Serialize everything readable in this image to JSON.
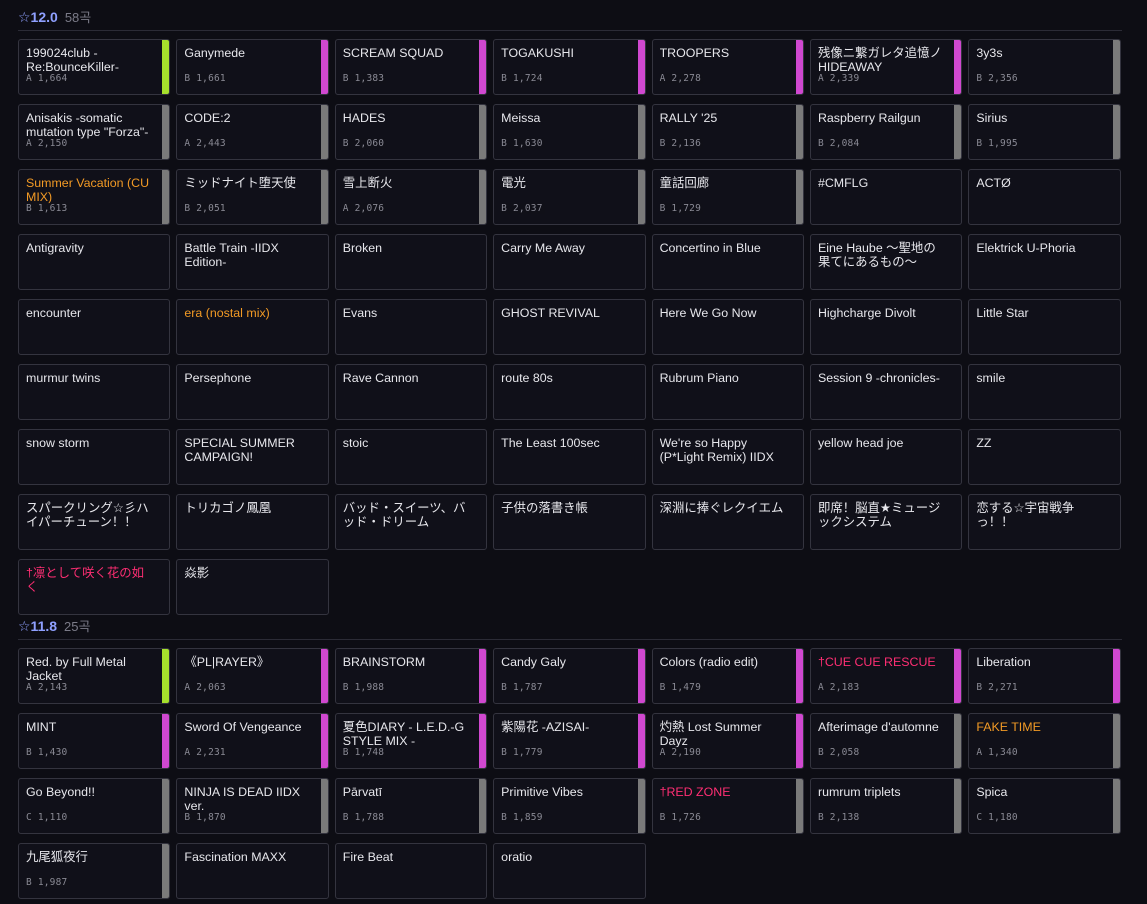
{
  "colors": {
    "green": "#a6e02c",
    "magenta": "#d048d0",
    "gray": "#7a7a7a",
    "orange": "#f29a25",
    "pink": "#ff2e73",
    "level": "#8fa0ff"
  },
  "sections": [
    {
      "level": "☆12.0",
      "count": "58곡",
      "cards": [
        {
          "title": "199024club -Re:BounceKiller-",
          "meta": "A 1,664",
          "bar": "green"
        },
        {
          "title": "Ganymede",
          "meta": "B 1,661",
          "bar": "magenta"
        },
        {
          "title": "SCREAM SQUAD",
          "meta": "B 1,383",
          "bar": "magenta"
        },
        {
          "title": "TOGAKUSHI",
          "meta": "B 1,724",
          "bar": "magenta"
        },
        {
          "title": "TROOPERS",
          "meta": "A 2,278",
          "bar": "magenta"
        },
        {
          "title": "残像ニ繋ガレタ追憶ノHIDEAWAY",
          "meta": "A 2,339",
          "bar": "magenta"
        },
        {
          "title": "3y3s",
          "meta": "B 2,356",
          "bar": "gray"
        },
        {
          "title": "Anisakis -somatic mutation type \"Forza\"-",
          "meta": "A 2,150",
          "bar": "gray"
        },
        {
          "title": "CODE:2",
          "meta": "A 2,443",
          "bar": "gray"
        },
        {
          "title": "HADES",
          "meta": "B 2,060",
          "bar": "gray"
        },
        {
          "title": "Meissa",
          "meta": "B 1,630",
          "bar": "gray"
        },
        {
          "title": "RALLY '25",
          "meta": "B 2,136",
          "bar": "gray"
        },
        {
          "title": "Raspberry Railgun",
          "meta": "B 2,084",
          "bar": "gray"
        },
        {
          "title": "Sirius",
          "meta": "B 1,995",
          "bar": "gray"
        },
        {
          "title": "Summer Vacation (CU MIX)",
          "meta": "B 1,613",
          "bar": "gray",
          "color": "orange"
        },
        {
          "title": "ミッドナイト堕天使",
          "meta": "B 2,051",
          "bar": "gray"
        },
        {
          "title": "雪上断火",
          "meta": "A 2,076",
          "bar": "gray"
        },
        {
          "title": "電光",
          "meta": "B 2,037",
          "bar": "gray"
        },
        {
          "title": "童話回廊",
          "meta": "B 1,729",
          "bar": "gray"
        },
        {
          "title": "#CMFLG"
        },
        {
          "title": "ACTØ"
        },
        {
          "title": "Antigravity"
        },
        {
          "title": "Battle Train -IIDX Edition-"
        },
        {
          "title": "Broken"
        },
        {
          "title": "Carry Me Away"
        },
        {
          "title": "Concertino in Blue"
        },
        {
          "title": "Eine Haube ～聖地の果てにあるもの～"
        },
        {
          "title": "Elektrick U-Phoria"
        },
        {
          "title": "encounter"
        },
        {
          "title": "era (nostal mix)",
          "color": "orange"
        },
        {
          "title": "Evans"
        },
        {
          "title": "GHOST REVIVAL"
        },
        {
          "title": "Here We Go Now"
        },
        {
          "title": "Highcharge Divolt"
        },
        {
          "title": "Little Star"
        },
        {
          "title": "murmur twins"
        },
        {
          "title": "Persephone"
        },
        {
          "title": "Rave Cannon"
        },
        {
          "title": "route 80s"
        },
        {
          "title": "Rubrum Piano"
        },
        {
          "title": "Session 9 -chronicles-"
        },
        {
          "title": "smile"
        },
        {
          "title": "snow storm"
        },
        {
          "title": "SPECIAL SUMMER CAMPAIGN!"
        },
        {
          "title": "stoic"
        },
        {
          "title": "The Least 100sec"
        },
        {
          "title": "We're so Happy (P*Light Remix) IIDX ver."
        },
        {
          "title": "yellow head joe"
        },
        {
          "title": "ZZ"
        },
        {
          "title": "スパークリング☆彡ハイパーチューン！！"
        },
        {
          "title": "トリカゴノ鳳凰"
        },
        {
          "title": "バッド・スイーツ、バッド・ドリーム"
        },
        {
          "title": "子供の落書き帳"
        },
        {
          "title": "深淵に捧ぐレクイエム"
        },
        {
          "title": "即席！脳直★ミュージックシステム"
        },
        {
          "title": "恋する☆宇宙戦争っ！！"
        },
        {
          "title": "†凛として咲く花の如く",
          "color": "pink"
        },
        {
          "title": "焱影"
        }
      ]
    },
    {
      "level": "☆11.8",
      "count": "25곡",
      "cards": [
        {
          "title": "Red. by Full Metal Jacket",
          "meta": "A 2,143",
          "bar": "green"
        },
        {
          "title": "《PL|RAYER》",
          "meta": "A 2,063",
          "bar": "magenta"
        },
        {
          "title": "BRAINSTORM",
          "meta": "B 1,988",
          "bar": "magenta"
        },
        {
          "title": "Candy Galy",
          "meta": "B 1,787",
          "bar": "magenta"
        },
        {
          "title": "Colors (radio edit)",
          "meta": "B 1,479",
          "bar": "magenta"
        },
        {
          "title": "†CUE CUE RESCUE",
          "meta": "A 2,183",
          "bar": "magenta",
          "color": "pink"
        },
        {
          "title": "Liberation",
          "meta": "B 2,271",
          "bar": "magenta"
        },
        {
          "title": "MINT",
          "meta": "B 1,430",
          "bar": "magenta"
        },
        {
          "title": "Sword Of Vengeance",
          "meta": "A 2,231",
          "bar": "magenta"
        },
        {
          "title": "夏色DIARY - L.E.D.-G STYLE MIX -",
          "meta": "B 1,748",
          "bar": "magenta"
        },
        {
          "title": "紫陽花 -AZISAI-",
          "meta": "B 1,779",
          "bar": "magenta"
        },
        {
          "title": "灼熱 Lost Summer Dayz",
          "meta": "A 2,190",
          "bar": "magenta"
        },
        {
          "title": "Afterimage d'automne",
          "meta": "B 2,058",
          "bar": "gray"
        },
        {
          "title": "FAKE TIME",
          "meta": "A 1,340",
          "bar": "gray",
          "color": "orange"
        },
        {
          "title": "Go Beyond!!",
          "meta": "C 1,110",
          "bar": "gray"
        },
        {
          "title": "NINJA IS DEAD IIDX ver.",
          "meta": "B 1,870",
          "bar": "gray"
        },
        {
          "title": "Pārvatī",
          "meta": "B 1,788",
          "bar": "gray"
        },
        {
          "title": "Primitive Vibes",
          "meta": "B 1,859",
          "bar": "gray"
        },
        {
          "title": "†RED ZONE",
          "meta": "B 1,726",
          "bar": "gray",
          "color": "pink"
        },
        {
          "title": "rumrum triplets",
          "meta": "B 2,138",
          "bar": "gray"
        },
        {
          "title": "Spica",
          "meta": "C 1,180",
          "bar": "gray"
        },
        {
          "title": "九尾狐夜行",
          "meta": "B 1,987",
          "bar": "gray"
        },
        {
          "title": "Fascination MAXX"
        },
        {
          "title": "Fire Beat"
        },
        {
          "title": "oratio"
        }
      ]
    }
  ]
}
